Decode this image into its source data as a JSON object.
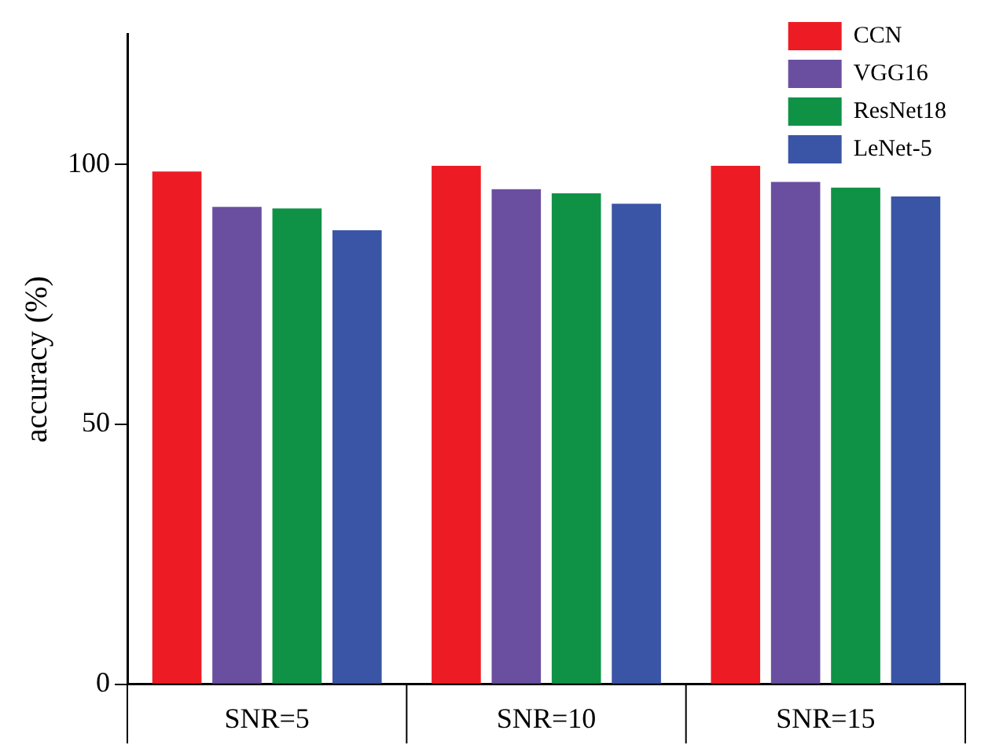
{
  "chart_data": {
    "type": "bar",
    "ylabel": "accuracy (%)",
    "categories": [
      "SNR=5",
      "SNR=10",
      "SNR=15"
    ],
    "series": [
      {
        "name": "CCN",
        "color": "#ed1c24",
        "values": [
          98.6,
          99.7,
          99.7
        ]
      },
      {
        "name": "VGG16",
        "color": "#6a4fa0",
        "values": [
          91.8,
          95.2,
          96.6
        ]
      },
      {
        "name": "ResNet18",
        "color": "#0f9245",
        "values": [
          91.5,
          94.4,
          95.5
        ]
      },
      {
        "name": "LeNet-5",
        "color": "#3a55a5",
        "values": [
          87.3,
          92.4,
          93.8
        ]
      }
    ],
    "ylim": [
      0,
      125
    ],
    "yticks": [
      0,
      50,
      100
    ],
    "grid": false,
    "legend": "top right"
  }
}
